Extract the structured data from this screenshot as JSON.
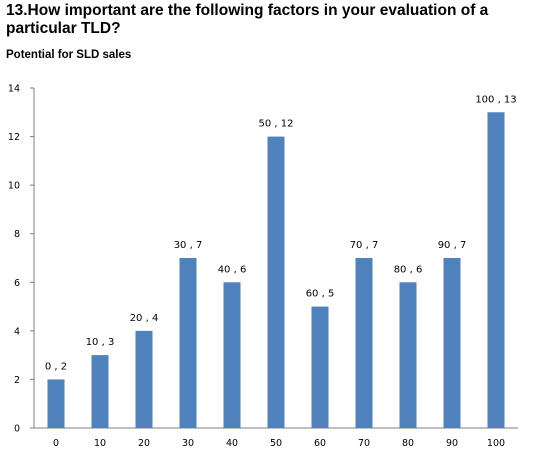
{
  "question_title": "13.How important are the following factors in your evaluation of a particular TLD?",
  "chart_data": {
    "type": "bar",
    "title": "Potential for SLD sales",
    "xlabel": "",
    "ylabel": "",
    "categories": [
      "0",
      "10",
      "20",
      "30",
      "40",
      "50",
      "60",
      "70",
      "80",
      "90",
      "100"
    ],
    "values": [
      2,
      3,
      4,
      7,
      6,
      12,
      5,
      7,
      6,
      7,
      13
    ],
    "data_labels": [
      "0 , 2",
      "10 , 3",
      "20 , 4",
      "30 , 7",
      "40 , 6",
      "50 , 12",
      "60 , 5",
      "70 , 7",
      "80 , 6",
      "90 , 7",
      "100 , 13"
    ],
    "yticks": [
      "0",
      "2",
      "4",
      "6",
      "8",
      "10",
      "12",
      "14"
    ],
    "ylim": [
      0,
      14
    ],
    "grid": false,
    "legend": "none",
    "bar_color": "#4f81bd"
  }
}
